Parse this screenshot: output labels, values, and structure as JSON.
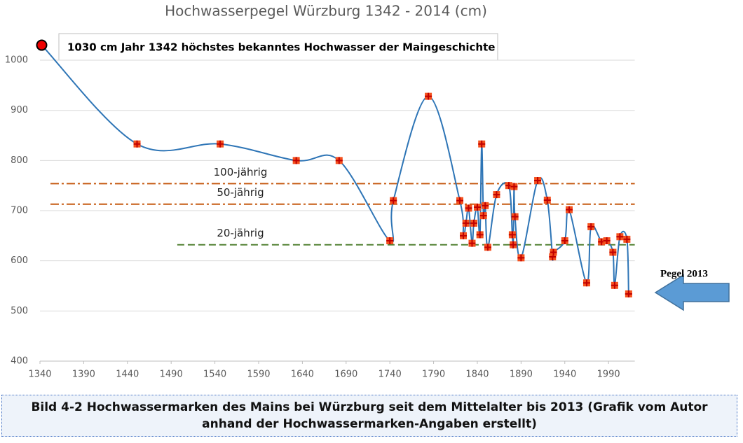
{
  "chart_data": {
    "type": "line",
    "title": "Hochwasserpegel Würzburg 1342 - 2014 (cm)",
    "x": [
      1342,
      1451,
      1546,
      1633,
      1682,
      1740,
      1744,
      1784,
      1820,
      1824,
      1827,
      1830,
      1834,
      1836,
      1840,
      1843,
      1845,
      1847,
      1849,
      1852,
      1862,
      1876,
      1880,
      1881,
      1882,
      1883,
      1890,
      1909,
      1920,
      1926,
      1927,
      1940,
      1945,
      1965,
      1970,
      1982,
      1988,
      1995,
      1997,
      2003,
      2011,
      2013
    ],
    "series": [
      {
        "color": "#2e75b6",
        "marker_color": "#f4511e",
        "values": [
          1030,
          833,
          833,
          800,
          800,
          640,
          720,
          928,
          720,
          650,
          675,
          705,
          635,
          675,
          707,
          652,
          833,
          690,
          710,
          627,
          732,
          750,
          652,
          632,
          748,
          688,
          606,
          760,
          721,
          608,
          617,
          640,
          702,
          556,
          668,
          638,
          640,
          617,
          551,
          648,
          643,
          534
        ]
      }
    ],
    "xlim": [
      1340,
      2020
    ],
    "xticks": [
      1340,
      1390,
      1440,
      1490,
      1540,
      1590,
      1640,
      1690,
      1740,
      1790,
      1840,
      1890,
      1940,
      1990
    ],
    "ylim": [
      400,
      1050
    ],
    "yticks": [
      400,
      500,
      600,
      700,
      800,
      900,
      1000
    ],
    "grid": true,
    "reference_lines": [
      {
        "label": "100-jährig",
        "value": 754,
        "x_start": 1352,
        "color": "#c55a11",
        "style": "dashdot"
      },
      {
        "label": "50-jährig",
        "value": 713,
        "x_start": 1352,
        "color": "#c55a11",
        "style": "dashdot"
      },
      {
        "label": "20-jährig",
        "value": 632,
        "x_start": 1497,
        "color": "#548235",
        "style": "dashed"
      }
    ],
    "annotation": "1030 cm Jahr 1342 höchstes bekanntes Hochwasser der Maingeschichte",
    "arrow_label": "Pegel 2013"
  },
  "caption": "Bild 4-2 Hochwassermarken des Mains bei Würzburg seit dem Mittelalter bis 2013 (Grafik vom Autor anhand der Hochwassermarken-Angaben erstellt)"
}
